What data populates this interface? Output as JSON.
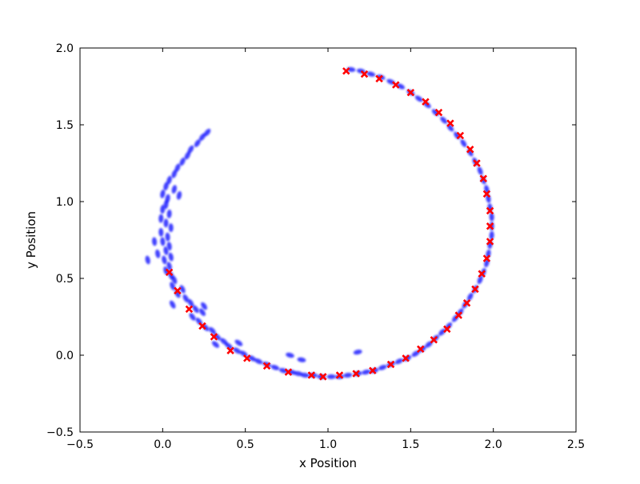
{
  "chart_data": {
    "type": "scatter",
    "title": "",
    "xlabel": "x Position",
    "ylabel": "y Position",
    "xlim": [
      -0.5,
      2.5
    ],
    "ylim": [
      -0.5,
      2.0
    ],
    "xticks": [
      "−0.5",
      "0.0",
      "0.5",
      "1.0",
      "1.5",
      "2.0",
      "2.5"
    ],
    "yticks": [
      "−0.5",
      "0.0",
      "0.5",
      "1.0",
      "1.5",
      "2.0"
    ],
    "xtick_values": [
      -0.5,
      0.0,
      0.5,
      1.0,
      1.5,
      2.0,
      2.5
    ],
    "ytick_values": [
      -0.5,
      0.0,
      0.5,
      1.0,
      1.5,
      2.0
    ],
    "grid": false,
    "legend": "none",
    "series": [
      {
        "marker": "ellipse",
        "color": "#0000ff",
        "points": [
          [
            0.27,
            1.45
          ],
          [
            0.24,
            1.42
          ],
          [
            0.21,
            1.38
          ],
          [
            0.17,
            1.34
          ],
          [
            0.15,
            1.3
          ],
          [
            0.12,
            1.26
          ],
          [
            0.09,
            1.22
          ],
          [
            0.07,
            1.18
          ],
          [
            0.04,
            1.14
          ],
          [
            0.02,
            1.1
          ],
          [
            0.07,
            1.08
          ],
          [
            0.0,
            1.05
          ],
          [
            0.03,
            1.02
          ],
          [
            0.1,
            1.04
          ],
          [
            0.02,
            0.98
          ],
          [
            0.0,
            0.95
          ],
          [
            0.04,
            0.92
          ],
          [
            -0.01,
            0.89
          ],
          [
            0.02,
            0.86
          ],
          [
            0.05,
            0.83
          ],
          [
            -0.01,
            0.8
          ],
          [
            0.03,
            0.77
          ],
          [
            0.0,
            0.74
          ],
          [
            0.04,
            0.71
          ],
          [
            -0.05,
            0.74
          ],
          [
            0.02,
            0.68
          ],
          [
            -0.03,
            0.66
          ],
          [
            0.05,
            0.64
          ],
          [
            0.01,
            0.62
          ],
          [
            -0.09,
            0.62
          ],
          [
            0.04,
            0.58
          ],
          [
            0.02,
            0.55
          ],
          [
            0.05,
            0.52
          ],
          [
            0.07,
            0.49
          ],
          [
            0.06,
            0.45
          ],
          [
            0.12,
            0.43
          ],
          [
            0.09,
            0.4
          ],
          [
            0.14,
            0.37
          ],
          [
            0.17,
            0.34
          ],
          [
            0.06,
            0.33
          ],
          [
            0.2,
            0.3
          ],
          [
            0.24,
            0.28
          ],
          [
            0.25,
            0.32
          ],
          [
            0.18,
            0.25
          ],
          [
            0.22,
            0.22
          ],
          [
            0.26,
            0.18
          ],
          [
            0.3,
            0.16
          ],
          [
            0.33,
            0.12
          ],
          [
            0.37,
            0.09
          ],
          [
            0.32,
            0.07
          ],
          [
            0.4,
            0.06
          ],
          [
            0.45,
            0.03
          ],
          [
            0.49,
            0.01
          ],
          [
            0.46,
            0.08
          ],
          [
            0.54,
            -0.02
          ],
          [
            0.58,
            -0.04
          ],
          [
            0.63,
            -0.06
          ],
          [
            0.68,
            -0.08
          ],
          [
            0.73,
            -0.1
          ],
          [
            0.78,
            -0.11
          ],
          [
            0.77,
            0.0
          ],
          [
            0.82,
            -0.12
          ],
          [
            0.86,
            -0.13
          ],
          [
            0.91,
            -0.13
          ],
          [
            0.96,
            -0.14
          ],
          [
            0.84,
            -0.03
          ],
          [
            1.02,
            -0.14
          ],
          [
            1.07,
            -0.14
          ],
          [
            1.12,
            -0.13
          ],
          [
            1.18,
            -0.12
          ],
          [
            1.18,
            0.02
          ],
          [
            1.23,
            -0.11
          ],
          [
            1.28,
            -0.1
          ],
          [
            1.33,
            -0.08
          ],
          [
            1.38,
            -0.06
          ],
          [
            1.43,
            -0.04
          ],
          [
            1.48,
            -0.02
          ],
          [
            1.53,
            0.01
          ],
          [
            1.57,
            0.04
          ],
          [
            1.61,
            0.07
          ],
          [
            1.65,
            0.11
          ],
          [
            1.69,
            0.15
          ],
          [
            1.73,
            0.19
          ],
          [
            1.77,
            0.24
          ],
          [
            1.8,
            0.28
          ],
          [
            1.83,
            0.33
          ],
          [
            1.86,
            0.38
          ],
          [
            1.89,
            0.43
          ],
          [
            1.92,
            0.49
          ],
          [
            1.94,
            0.54
          ],
          [
            1.96,
            0.6
          ],
          [
            1.97,
            0.66
          ],
          [
            1.98,
            0.72
          ],
          [
            1.99,
            0.78
          ],
          [
            1.99,
            0.84
          ],
          [
            1.99,
            0.9
          ],
          [
            1.98,
            0.96
          ],
          [
            1.97,
            1.02
          ],
          [
            1.96,
            1.08
          ],
          [
            1.94,
            1.14
          ],
          [
            1.92,
            1.2
          ],
          [
            1.89,
            1.26
          ],
          [
            1.86,
            1.32
          ],
          [
            1.82,
            1.38
          ],
          [
            1.78,
            1.43
          ],
          [
            1.74,
            1.48
          ],
          [
            1.7,
            1.53
          ],
          [
            1.65,
            1.58
          ],
          [
            1.6,
            1.63
          ],
          [
            1.55,
            1.67
          ],
          [
            1.5,
            1.71
          ],
          [
            1.44,
            1.75
          ],
          [
            1.38,
            1.78
          ],
          [
            1.32,
            1.81
          ],
          [
            1.26,
            1.83
          ],
          [
            1.2,
            1.85
          ],
          [
            1.14,
            1.86
          ]
        ]
      },
      {
        "marker": "x",
        "color": "#ff0000",
        "points": [
          [
            1.11,
            1.85
          ],
          [
            1.22,
            1.83
          ],
          [
            1.31,
            1.8
          ],
          [
            1.41,
            1.76
          ],
          [
            1.5,
            1.71
          ],
          [
            1.59,
            1.65
          ],
          [
            1.67,
            1.58
          ],
          [
            1.74,
            1.51
          ],
          [
            1.8,
            1.43
          ],
          [
            1.86,
            1.34
          ],
          [
            1.9,
            1.25
          ],
          [
            1.94,
            1.15
          ],
          [
            1.96,
            1.05
          ],
          [
            1.98,
            0.94
          ],
          [
            1.98,
            0.84
          ],
          [
            1.98,
            0.74
          ],
          [
            1.96,
            0.63
          ],
          [
            1.93,
            0.53
          ],
          [
            1.89,
            0.43
          ],
          [
            1.84,
            0.34
          ],
          [
            1.79,
            0.26
          ],
          [
            1.72,
            0.17
          ],
          [
            1.64,
            0.1
          ],
          [
            1.56,
            0.04
          ],
          [
            1.47,
            -0.02
          ],
          [
            1.38,
            -0.06
          ],
          [
            1.27,
            -0.1
          ],
          [
            1.17,
            -0.12
          ],
          [
            1.07,
            -0.13
          ],
          [
            0.97,
            -0.14
          ],
          [
            0.9,
            -0.13
          ],
          [
            0.76,
            -0.11
          ],
          [
            0.63,
            -0.07
          ],
          [
            0.51,
            -0.02
          ],
          [
            0.41,
            0.03
          ],
          [
            0.31,
            0.12
          ],
          [
            0.24,
            0.19
          ],
          [
            0.16,
            0.3
          ],
          [
            0.09,
            0.42
          ],
          [
            0.04,
            0.54
          ]
        ]
      }
    ]
  }
}
